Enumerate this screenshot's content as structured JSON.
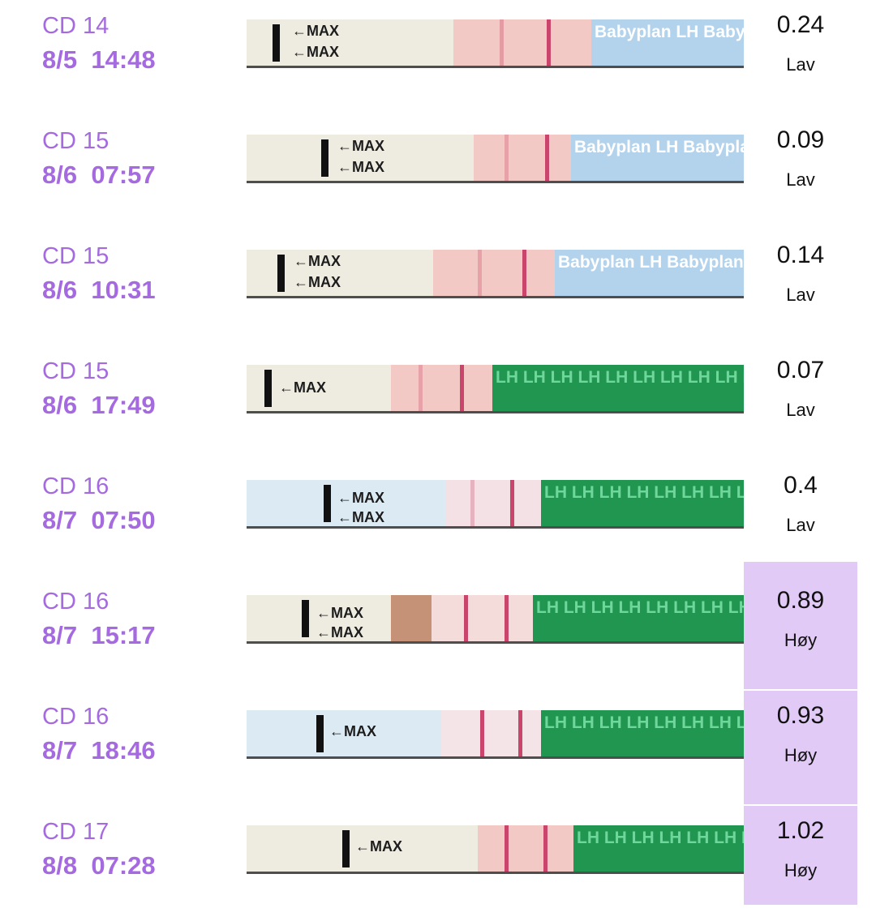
{
  "rows": [
    {
      "cd": "CD 14",
      "date": "8/5",
      "time": "14:48",
      "value": "0.24",
      "level": "Lav",
      "high": false,
      "brand": "blue"
    },
    {
      "cd": "CD 15",
      "date": "8/6",
      "time": "07:57",
      "value": "0.09",
      "level": "Lav",
      "high": false,
      "brand": "blue"
    },
    {
      "cd": "CD 15",
      "date": "8/6",
      "time": "10:31",
      "value": "0.14",
      "level": "Lav",
      "high": false,
      "brand": "blue"
    },
    {
      "cd": "CD 15",
      "date": "8/6",
      "time": "17:49",
      "value": "0.07",
      "level": "Lav",
      "high": false,
      "brand": "green"
    },
    {
      "cd": "CD 16",
      "date": "8/7",
      "time": "07:50",
      "value": "0.4",
      "level": "Lav",
      "high": false,
      "brand": "green"
    },
    {
      "cd": "CD 16",
      "date": "8/7",
      "time": "15:17",
      "value": "0.89",
      "level": "Høy",
      "high": true,
      "brand": "green"
    },
    {
      "cd": "CD 16",
      "date": "8/7",
      "time": "18:46",
      "value": "0.93",
      "level": "Høy",
      "high": true,
      "brand": "green"
    },
    {
      "cd": "CD 17",
      "date": "8/8",
      "time": "07:28",
      "value": "1.02",
      "level": "Høy",
      "high": true,
      "brand": "green"
    }
  ],
  "strip_labels": {
    "max": "←MAX",
    "brand_blue": "Babyplan LH Babyplan LH Babyplan LH",
    "brand_green": "LH LH LH LH LH LH LH LH LH LH LH LH"
  },
  "colors": {
    "date_text": "#a56ae0",
    "high_background": "#e2caf7",
    "test_line": "#c9456b",
    "brand_blue": "#b3d2ec",
    "brand_green": "#219650"
  }
}
